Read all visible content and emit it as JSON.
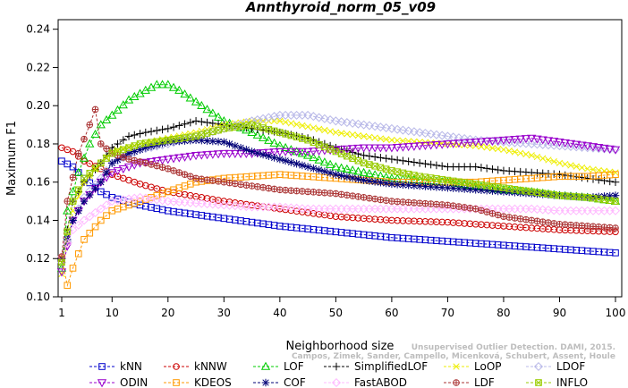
{
  "chart_data": {
    "type": "line",
    "title": "Annthyroid_norm_05_v09",
    "xlabel": "Neighborhood size",
    "ylabel": "Maximum F1",
    "xlim": [
      1,
      100
    ],
    "ylim": [
      0.1,
      0.245
    ],
    "xticks": [
      1,
      10,
      20,
      30,
      40,
      50,
      60,
      70,
      80,
      90,
      100
    ],
    "yticks": [
      0.1,
      0.12,
      0.14,
      0.16,
      0.18,
      0.2,
      0.22,
      0.24
    ],
    "ytick_labels": [
      "0.10",
      "0.12",
      "0.14",
      "0.16",
      "0.18",
      "0.20",
      "0.22",
      "0.24"
    ],
    "grid": false,
    "legend_position": "bottom",
    "watermark_lines": [
      "Unsupervised Outlier Detection. DAMI, 2015.",
      "Campos, Zimek, Sander, Campello, Micenková, Schubert, Assent, Houle"
    ],
    "series": [
      {
        "name": "kNN",
        "color": "#0000cc",
        "marker": "square",
        "points": [
          [
            1,
            0.171
          ],
          [
            3,
            0.168
          ],
          [
            5,
            0.162
          ],
          [
            8,
            0.155
          ],
          [
            10,
            0.152
          ],
          [
            15,
            0.148
          ],
          [
            20,
            0.145
          ],
          [
            30,
            0.141
          ],
          [
            40,
            0.137
          ],
          [
            50,
            0.134
          ],
          [
            60,
            0.131
          ],
          [
            70,
            0.129
          ],
          [
            80,
            0.127
          ],
          [
            90,
            0.125
          ],
          [
            100,
            0.123
          ]
        ]
      },
      {
        "name": "kNNW",
        "color": "#cc0000",
        "marker": "circle",
        "points": [
          [
            1,
            0.178
          ],
          [
            3,
            0.176
          ],
          [
            5,
            0.171
          ],
          [
            8,
            0.167
          ],
          [
            10,
            0.164
          ],
          [
            15,
            0.159
          ],
          [
            20,
            0.155
          ],
          [
            30,
            0.15
          ],
          [
            40,
            0.146
          ],
          [
            50,
            0.142
          ],
          [
            60,
            0.14
          ],
          [
            70,
            0.139
          ],
          [
            80,
            0.137
          ],
          [
            90,
            0.135
          ],
          [
            100,
            0.134
          ]
        ]
      },
      {
        "name": "LOF",
        "color": "#00cc00",
        "marker": "triangle-up",
        "points": [
          [
            1,
            0.115
          ],
          [
            2,
            0.145
          ],
          [
            4,
            0.165
          ],
          [
            6,
            0.18
          ],
          [
            8,
            0.19
          ],
          [
            10,
            0.195
          ],
          [
            13,
            0.203
          ],
          [
            16,
            0.208
          ],
          [
            18,
            0.211
          ],
          [
            20,
            0.211
          ],
          [
            22,
            0.208
          ],
          [
            25,
            0.202
          ],
          [
            28,
            0.196
          ],
          [
            30,
            0.192
          ],
          [
            35,
            0.186
          ],
          [
            40,
            0.179
          ],
          [
            45,
            0.174
          ],
          [
            50,
            0.168
          ],
          [
            55,
            0.165
          ],
          [
            60,
            0.162
          ],
          [
            65,
            0.161
          ],
          [
            70,
            0.16
          ],
          [
            75,
            0.158
          ],
          [
            80,
            0.156
          ],
          [
            85,
            0.155
          ],
          [
            90,
            0.153
          ],
          [
            95,
            0.152
          ],
          [
            100,
            0.15
          ]
        ]
      },
      {
        "name": "SimplifiedLOF",
        "color": "#000000",
        "marker": "plus",
        "points": [
          [
            1,
            0.12
          ],
          [
            3,
            0.15
          ],
          [
            5,
            0.16
          ],
          [
            8,
            0.17
          ],
          [
            10,
            0.178
          ],
          [
            13,
            0.184
          ],
          [
            16,
            0.186
          ],
          [
            20,
            0.188
          ],
          [
            25,
            0.192
          ],
          [
            30,
            0.19
          ],
          [
            35,
            0.188
          ],
          [
            40,
            0.186
          ],
          [
            45,
            0.183
          ],
          [
            50,
            0.178
          ],
          [
            55,
            0.174
          ],
          [
            60,
            0.172
          ],
          [
            65,
            0.17
          ],
          [
            70,
            0.168
          ],
          [
            75,
            0.168
          ],
          [
            80,
            0.166
          ],
          [
            85,
            0.165
          ],
          [
            90,
            0.164
          ],
          [
            95,
            0.162
          ],
          [
            100,
            0.16
          ]
        ]
      },
      {
        "name": "LoOP",
        "color": "#eeee00",
        "marker": "x",
        "points": [
          [
            1,
            0.112
          ],
          [
            3,
            0.145
          ],
          [
            5,
            0.16
          ],
          [
            8,
            0.17
          ],
          [
            10,
            0.176
          ],
          [
            15,
            0.18
          ],
          [
            20,
            0.183
          ],
          [
            25,
            0.186
          ],
          [
            30,
            0.19
          ],
          [
            35,
            0.192
          ],
          [
            40,
            0.192
          ],
          [
            45,
            0.189
          ],
          [
            50,
            0.186
          ],
          [
            55,
            0.184
          ],
          [
            60,
            0.182
          ],
          [
            65,
            0.181
          ],
          [
            70,
            0.18
          ],
          [
            75,
            0.179
          ],
          [
            80,
            0.177
          ],
          [
            85,
            0.174
          ],
          [
            90,
            0.17
          ],
          [
            95,
            0.167
          ],
          [
            100,
            0.165
          ]
        ]
      },
      {
        "name": "LDOF",
        "color": "#b8b8e8",
        "marker": "diamond",
        "points": [
          [
            1,
            0.118
          ],
          [
            3,
            0.14
          ],
          [
            5,
            0.152
          ],
          [
            8,
            0.162
          ],
          [
            10,
            0.17
          ],
          [
            15,
            0.177
          ],
          [
            20,
            0.18
          ],
          [
            25,
            0.184
          ],
          [
            30,
            0.188
          ],
          [
            35,
            0.192
          ],
          [
            40,
            0.195
          ],
          [
            45,
            0.195
          ],
          [
            50,
            0.192
          ],
          [
            55,
            0.19
          ],
          [
            60,
            0.188
          ],
          [
            65,
            0.186
          ],
          [
            70,
            0.184
          ],
          [
            75,
            0.182
          ],
          [
            80,
            0.181
          ],
          [
            85,
            0.18
          ],
          [
            90,
            0.179
          ],
          [
            95,
            0.178
          ],
          [
            100,
            0.177
          ]
        ]
      },
      {
        "name": "ODIN",
        "color": "#9900cc",
        "marker": "triangle-down",
        "points": [
          [
            1,
            0.113
          ],
          [
            3,
            0.14
          ],
          [
            5,
            0.15
          ],
          [
            8,
            0.16
          ],
          [
            10,
            0.165
          ],
          [
            15,
            0.17
          ],
          [
            20,
            0.172
          ],
          [
            25,
            0.174
          ],
          [
            30,
            0.175
          ],
          [
            35,
            0.175
          ],
          [
            40,
            0.176
          ],
          [
            45,
            0.176
          ],
          [
            50,
            0.177
          ],
          [
            55,
            0.178
          ],
          [
            60,
            0.178
          ],
          [
            65,
            0.179
          ],
          [
            70,
            0.18
          ],
          [
            75,
            0.181
          ],
          [
            80,
            0.182
          ],
          [
            85,
            0.183
          ],
          [
            90,
            0.181
          ],
          [
            95,
            0.179
          ],
          [
            100,
            0.177
          ]
        ]
      },
      {
        "name": "KDEOS",
        "color": "#ff9900",
        "marker": "square",
        "points": [
          [
            1,
            0.12
          ],
          [
            2,
            0.106
          ],
          [
            3,
            0.115
          ],
          [
            5,
            0.13
          ],
          [
            8,
            0.14
          ],
          [
            10,
            0.145
          ],
          [
            15,
            0.15
          ],
          [
            20,
            0.155
          ],
          [
            25,
            0.16
          ],
          [
            30,
            0.162
          ],
          [
            35,
            0.163
          ],
          [
            40,
            0.164
          ],
          [
            45,
            0.163
          ],
          [
            50,
            0.162
          ],
          [
            55,
            0.161
          ],
          [
            60,
            0.16
          ],
          [
            65,
            0.16
          ],
          [
            70,
            0.16
          ],
          [
            75,
            0.16
          ],
          [
            80,
            0.161
          ],
          [
            85,
            0.162
          ],
          [
            90,
            0.163
          ],
          [
            95,
            0.163
          ],
          [
            100,
            0.164
          ]
        ]
      },
      {
        "name": "COF",
        "color": "#000077",
        "marker": "asterisk",
        "points": [
          [
            1,
            0.12
          ],
          [
            3,
            0.14
          ],
          [
            5,
            0.15
          ],
          [
            8,
            0.16
          ],
          [
            10,
            0.17
          ],
          [
            13,
            0.175
          ],
          [
            16,
            0.178
          ],
          [
            20,
            0.181
          ],
          [
            25,
            0.182
          ],
          [
            30,
            0.181
          ],
          [
            35,
            0.176
          ],
          [
            40,
            0.172
          ],
          [
            45,
            0.168
          ],
          [
            50,
            0.164
          ],
          [
            55,
            0.161
          ],
          [
            60,
            0.159
          ],
          [
            65,
            0.158
          ],
          [
            70,
            0.157
          ],
          [
            75,
            0.156
          ],
          [
            80,
            0.155
          ],
          [
            85,
            0.154
          ],
          [
            90,
            0.153
          ],
          [
            95,
            0.152
          ],
          [
            100,
            0.153
          ]
        ]
      },
      {
        "name": "FastABOD",
        "color": "#ffb8ff",
        "marker": "diamond",
        "points": [
          [
            1,
            0.121
          ],
          [
            3,
            0.135
          ],
          [
            5,
            0.14
          ],
          [
            8,
            0.146
          ],
          [
            10,
            0.15
          ],
          [
            15,
            0.152
          ],
          [
            20,
            0.15
          ],
          [
            25,
            0.149
          ],
          [
            30,
            0.148
          ],
          [
            35,
            0.147
          ],
          [
            40,
            0.147
          ],
          [
            45,
            0.146
          ],
          [
            50,
            0.146
          ],
          [
            55,
            0.146
          ],
          [
            60,
            0.146
          ],
          [
            65,
            0.146
          ],
          [
            70,
            0.146
          ],
          [
            75,
            0.146
          ],
          [
            80,
            0.146
          ],
          [
            85,
            0.146
          ],
          [
            90,
            0.145
          ],
          [
            95,
            0.145
          ],
          [
            100,
            0.145
          ]
        ]
      },
      {
        "name": "LDF",
        "color": "#aa3333",
        "marker": "circle-plus",
        "points": [
          [
            1,
            0.121
          ],
          [
            2,
            0.15
          ],
          [
            4,
            0.175
          ],
          [
            6,
            0.19
          ],
          [
            7,
            0.198
          ],
          [
            8,
            0.18
          ],
          [
            10,
            0.175
          ],
          [
            13,
            0.172
          ],
          [
            16,
            0.17
          ],
          [
            20,
            0.167
          ],
          [
            25,
            0.162
          ],
          [
            30,
            0.16
          ],
          [
            35,
            0.158
          ],
          [
            40,
            0.156
          ],
          [
            45,
            0.155
          ],
          [
            50,
            0.154
          ],
          [
            55,
            0.152
          ],
          [
            60,
            0.15
          ],
          [
            65,
            0.149
          ],
          [
            70,
            0.148
          ],
          [
            75,
            0.146
          ],
          [
            80,
            0.142
          ],
          [
            85,
            0.14
          ],
          [
            90,
            0.138
          ],
          [
            95,
            0.137
          ],
          [
            100,
            0.136
          ]
        ]
      },
      {
        "name": "INFLO",
        "color": "#99cc00",
        "marker": "square-x",
        "points": [
          [
            1,
            0.118
          ],
          [
            3,
            0.15
          ],
          [
            5,
            0.162
          ],
          [
            8,
            0.17
          ],
          [
            10,
            0.175
          ],
          [
            15,
            0.18
          ],
          [
            20,
            0.182
          ],
          [
            25,
            0.184
          ],
          [
            30,
            0.188
          ],
          [
            35,
            0.19
          ],
          [
            40,
            0.186
          ],
          [
            45,
            0.182
          ],
          [
            50,
            0.176
          ],
          [
            55,
            0.17
          ],
          [
            60,
            0.166
          ],
          [
            65,
            0.163
          ],
          [
            70,
            0.161
          ],
          [
            75,
            0.159
          ],
          [
            80,
            0.157
          ],
          [
            85,
            0.155
          ],
          [
            90,
            0.153
          ],
          [
            95,
            0.152
          ],
          [
            100,
            0.15
          ]
        ]
      }
    ]
  }
}
